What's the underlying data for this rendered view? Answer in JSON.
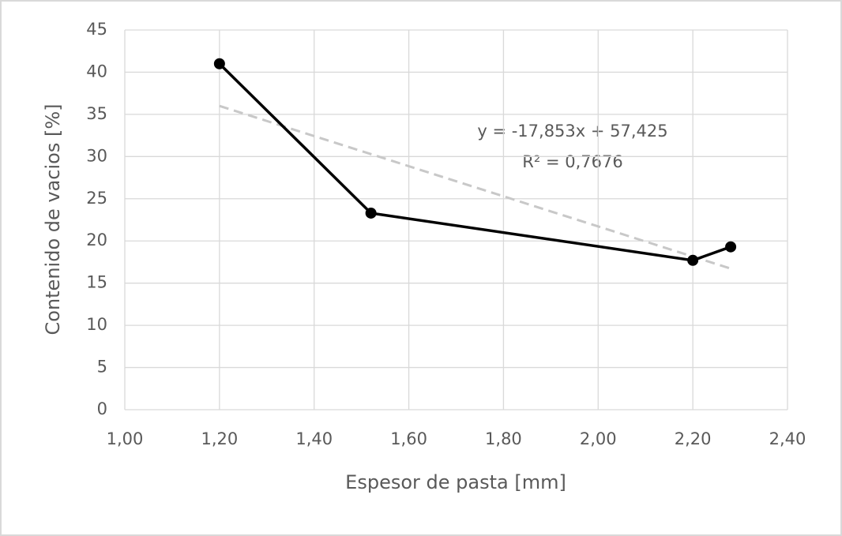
{
  "chart_data": {
    "type": "line",
    "x_label": "Espesor de pasta [mm]",
    "y_label": "Contenido de vacios [%]",
    "series": [
      {
        "color": "#000000",
        "x": [
          1.2,
          1.52,
          2.2,
          2.28
        ],
        "values": [
          41,
          23.3,
          17.7,
          19.3
        ]
      }
    ],
    "trendline": {
      "color": "#c8c8c8",
      "slope": -17.853,
      "intercept": 57.425,
      "equation_label": "y = -17,853x  + 57,425",
      "r2_label": "R² = 0,7676"
    },
    "xlim": [
      1.0,
      2.4
    ],
    "xticks": [
      {
        "value": 1.0,
        "label": "1,00"
      },
      {
        "value": 1.2,
        "label": "1,20"
      },
      {
        "value": 1.4,
        "label": "1,40"
      },
      {
        "value": 1.6,
        "label": "1,60"
      },
      {
        "value": 1.8,
        "label": "1,80"
      },
      {
        "value": 2.0,
        "label": "2,00"
      },
      {
        "value": 2.2,
        "label": "2,20"
      },
      {
        "value": 2.4,
        "label": "2,40"
      }
    ],
    "ylim": [
      0,
      45
    ],
    "yticks": [
      0,
      5,
      10,
      15,
      20,
      25,
      30,
      35,
      40,
      45
    ],
    "grid": true
  }
}
